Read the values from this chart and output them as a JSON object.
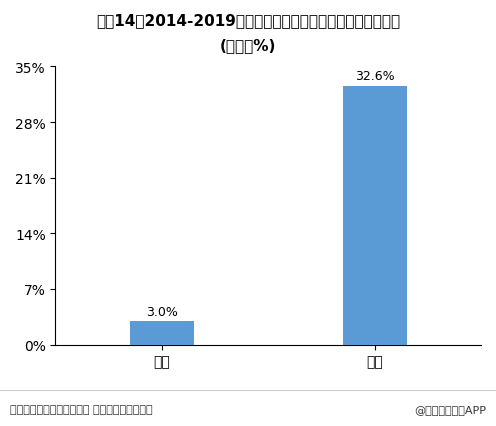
{
  "title_line1": "图表14：2014-2019年含糖和无糖茶饮料年均复合增长率对比",
  "title_line2": "(单位：%)",
  "categories": [
    "含糖",
    "无糖"
  ],
  "values": [
    3.0,
    32.6
  ],
  "bar_color": "#5b9bd5",
  "ylim": [
    0,
    35
  ],
  "yticks": [
    0,
    7,
    14,
    21,
    28,
    35
  ],
  "ytick_labels": [
    "0%",
    "7%",
    "14%",
    "21%",
    "28%",
    "35%"
  ],
  "value_labels": [
    "3.0%",
    "32.6%"
  ],
  "footer_left": "资料来源：弗若斯特沙利文 前瞻产业研究院整理",
  "footer_right": "@前瞻经济学人APP",
  "background_color": "#ffffff",
  "title_fontsize": 11,
  "axis_fontsize": 10,
  "label_fontsize": 9,
  "footer_fontsize": 8,
  "bar_positions": [
    0.25,
    0.75
  ],
  "bar_width": 0.15
}
